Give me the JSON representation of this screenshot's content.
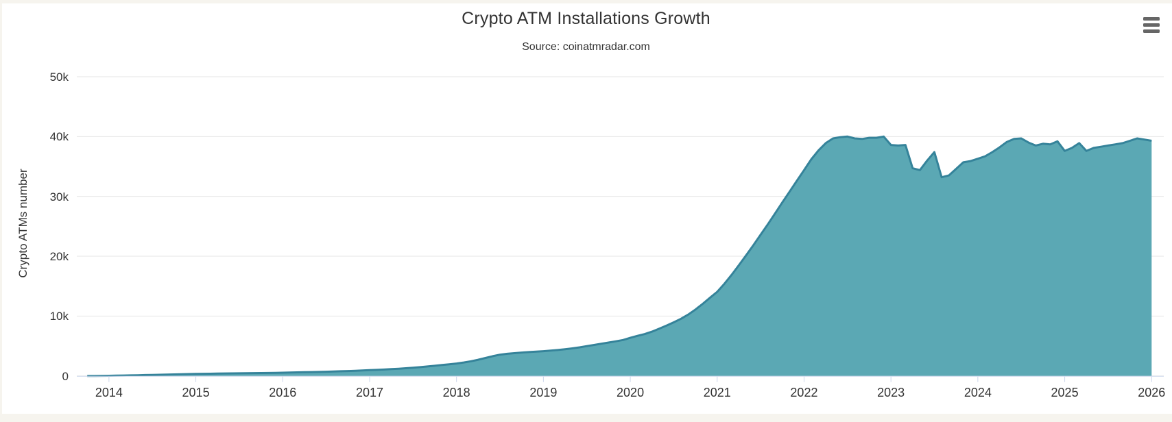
{
  "chart_data": {
    "type": "area",
    "title": "Crypto ATM Installations Growth",
    "subtitle": "Source: coinatmradar.com",
    "xlabel": "",
    "ylabel": "Crypto ATMs number",
    "ylim": [
      0,
      50000
    ],
    "xlim_years": [
      2013.63,
      2026.14
    ],
    "grid": true,
    "legend": false,
    "yticks": [
      {
        "v": 0,
        "label": "0"
      },
      {
        "v": 10000,
        "label": "10k"
      },
      {
        "v": 20000,
        "label": "20k"
      },
      {
        "v": 30000,
        "label": "30k"
      },
      {
        "v": 40000,
        "label": "40k"
      },
      {
        "v": 50000,
        "label": "50k"
      }
    ],
    "xticks": [
      {
        "v": 2014,
        "label": "2014"
      },
      {
        "v": 2015,
        "label": "2015"
      },
      {
        "v": 2016,
        "label": "2016"
      },
      {
        "v": 2017,
        "label": "2017"
      },
      {
        "v": 2018,
        "label": "2018"
      },
      {
        "v": 2019,
        "label": "2019"
      },
      {
        "v": 2020,
        "label": "2020"
      },
      {
        "v": 2021,
        "label": "2021"
      },
      {
        "v": 2022,
        "label": "2022"
      },
      {
        "v": 2023,
        "label": "2023"
      },
      {
        "v": 2024,
        "label": "2024"
      },
      {
        "v": 2025,
        "label": "2025"
      },
      {
        "v": 2026,
        "label": "2026"
      }
    ],
    "series": [
      {
        "name": "Crypto ATMs number",
        "start_year": 2013,
        "start_month": 10,
        "interval": "monthly",
        "values": [
          1,
          4,
          10,
          25,
          45,
          70,
          95,
          120,
          145,
          170,
          195,
          225,
          255,
          285,
          310,
          330,
          350,
          370,
          390,
          410,
          425,
          440,
          455,
          470,
          485,
          495,
          505,
          540,
          565,
          590,
          615,
          640,
          665,
          700,
          735,
          775,
          815,
          855,
          900,
          965,
          1010,
          1070,
          1130,
          1200,
          1280,
          1370,
          1470,
          1580,
          1700,
          1830,
          1950,
          2070,
          2240,
          2450,
          2700,
          3000,
          3300,
          3550,
          3700,
          3800,
          3900,
          3980,
          4050,
          4130,
          4220,
          4330,
          4450,
          4600,
          4780,
          4980,
          5180,
          5380,
          5580,
          5780,
          6000,
          6370,
          6700,
          7000,
          7400,
          7900,
          8400,
          8950,
          9550,
          10250,
          11100,
          12050,
          13050,
          14050,
          15400,
          16900,
          18500,
          20150,
          21850,
          23600,
          25350,
          27150,
          29000,
          30800,
          32600,
          34400,
          36200,
          37700,
          38900,
          39700,
          39900,
          40000,
          39700,
          39600,
          39800,
          39800,
          40000,
          38600,
          38500,
          38600,
          34700,
          34400,
          36000,
          37400,
          33200,
          33500,
          34600,
          35700,
          35900,
          36300,
          36700,
          37400,
          38200,
          39100,
          39600,
          39700,
          39000,
          38500,
          38800,
          38700,
          39200,
          37600,
          38100,
          38900,
          37600,
          38100,
          38300,
          38500,
          38700,
          38900,
          39300,
          39700,
          39500,
          39300
        ]
      }
    ],
    "colors": {
      "line": "#35839A",
      "fill": "#5BA8B4",
      "grid": "#E6E6E6",
      "axis": "#CCD6EB",
      "label": "#333333",
      "background": "#FFFFFF",
      "frame": "#F6F4EE"
    }
  },
  "menu": {
    "name": "chart context menu",
    "icon_color": "#666666"
  }
}
